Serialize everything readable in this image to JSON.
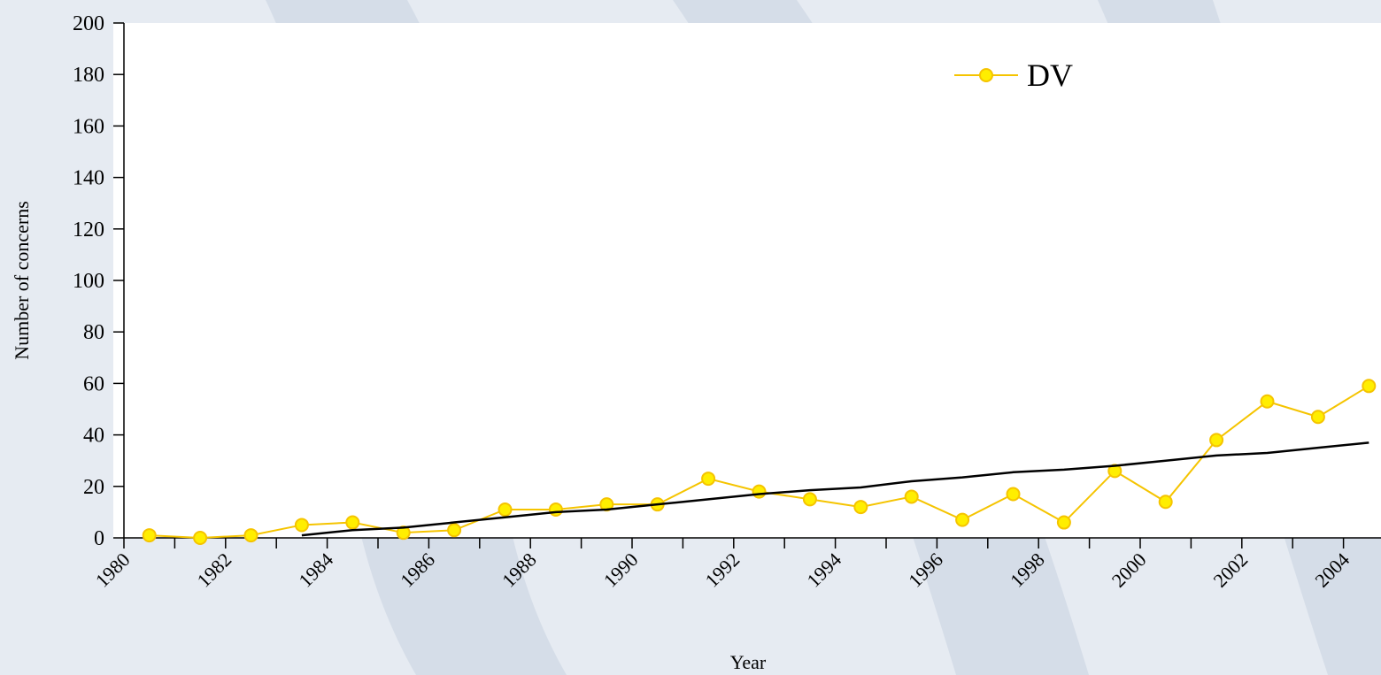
{
  "chart_data": {
    "type": "line",
    "xlabel": "Year",
    "ylabel": "Number of concerns",
    "categories": [
      "1980",
      null,
      "1982",
      null,
      "1984",
      null,
      "1986",
      null,
      "1988",
      null,
      "1990",
      null,
      "1992",
      null,
      "1994",
      null,
      "1996",
      null,
      "1998",
      null,
      "2000",
      null,
      "2002",
      null,
      "2004"
    ],
    "series": [
      {
        "name": "DV",
        "color": "#f5c400",
        "marker": "circle",
        "values": [
          1,
          0,
          1,
          5,
          6,
          2,
          3,
          11,
          11,
          13,
          13,
          23,
          18,
          15,
          12,
          16,
          7,
          17,
          6,
          26,
          14,
          38,
          53,
          47,
          59
        ]
      },
      {
        "color": "#000000",
        "values": [
          null,
          null,
          null,
          1,
          3,
          4,
          6,
          8,
          10,
          11,
          13,
          15,
          17,
          18.5,
          19.6,
          22,
          23.5,
          25.5,
          26.5,
          28,
          30,
          32,
          33,
          35,
          37
        ]
      }
    ],
    "ylim": [
      0,
      200
    ],
    "yticks": [
      0,
      20,
      40,
      60,
      80,
      100,
      120,
      140,
      160,
      180,
      200
    ],
    "legend": "upper right"
  }
}
